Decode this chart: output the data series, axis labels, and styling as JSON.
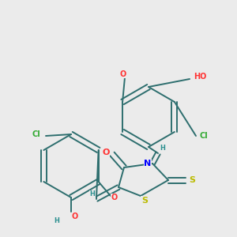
{
  "background_color": "#ebebeb",
  "bond_color": "#2d6e6e",
  "bond_width": 1.4,
  "atom_colors": {
    "O": "#ff3333",
    "N": "#0000ff",
    "S": "#bbbb00",
    "Cl": "#33aa33",
    "C": "#2d6e6e",
    "H": "#2d9090"
  },
  "font_size": 7.0,
  "fig_width": 3.0,
  "fig_height": 3.0,
  "dpi": 100
}
